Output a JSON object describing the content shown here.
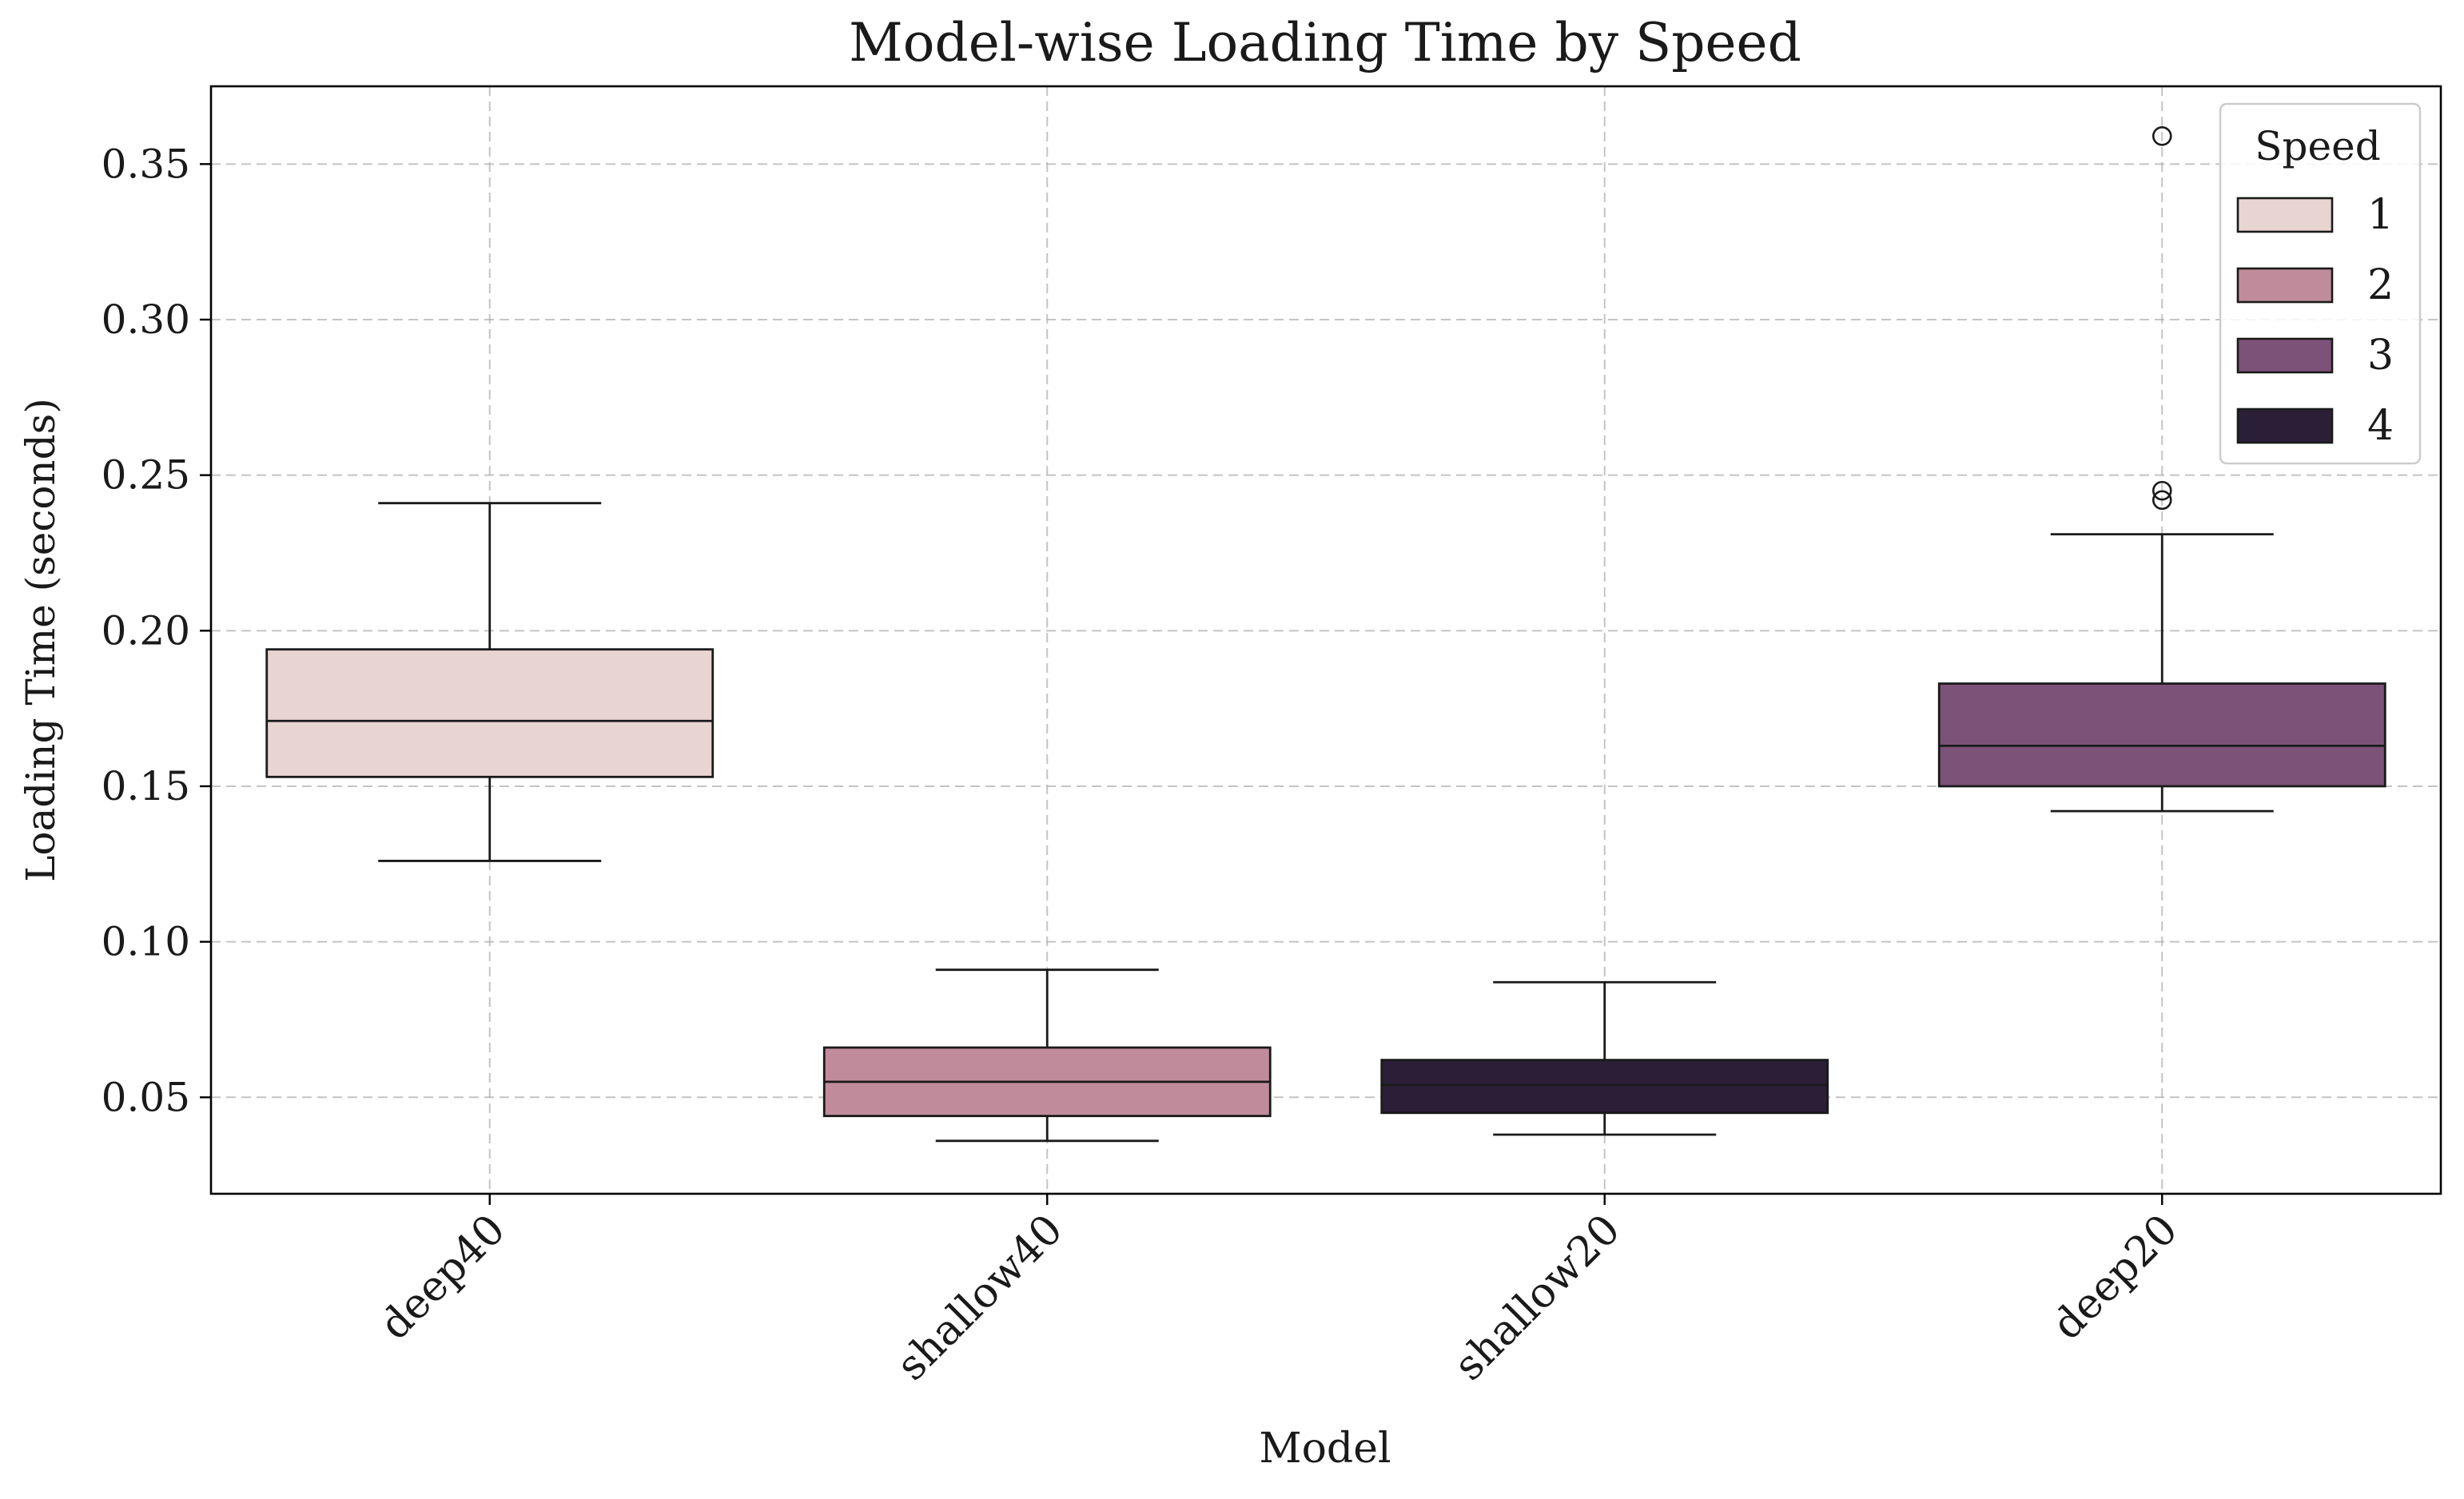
{
  "chart_data": {
    "type": "box",
    "title": "Model-wise Loading Time by Speed",
    "xlabel": "Model",
    "ylabel": "Loading Time (seconds)",
    "categories": [
      "deep40",
      "shallow40",
      "shallow20",
      "deep20"
    ],
    "ylim": [
      0.019,
      0.375
    ],
    "yticks": [
      {
        "value": 0.05,
        "label": "0.05"
      },
      {
        "value": 0.1,
        "label": "0.10"
      },
      {
        "value": 0.15,
        "label": "0.15"
      },
      {
        "value": 0.2,
        "label": "0.20"
      },
      {
        "value": 0.25,
        "label": "0.25"
      },
      {
        "value": 0.3,
        "label": "0.30"
      },
      {
        "value": 0.35,
        "label": "0.35"
      }
    ],
    "grid": true,
    "legend": {
      "title": "Speed",
      "placement": "top-right",
      "entries": [
        {
          "label": "1",
          "color": "#e8d4d0"
        },
        {
          "label": "2",
          "color": "#c08c9b"
        },
        {
          "label": "3",
          "color": "#7c5278"
        },
        {
          "label": "4",
          "color": "#2b1f38"
        }
      ]
    },
    "boxes": [
      {
        "category": "deep40",
        "speed": "1",
        "color": "#e8d4d0",
        "whisker_low": 0.126,
        "q1": 0.153,
        "median": 0.171,
        "q3": 0.194,
        "whisker_high": 0.241,
        "outliers": []
      },
      {
        "category": "shallow40",
        "speed": "2",
        "color": "#c08c9b",
        "whisker_low": 0.036,
        "q1": 0.044,
        "median": 0.055,
        "q3": 0.066,
        "whisker_high": 0.091,
        "outliers": []
      },
      {
        "category": "shallow20",
        "speed": "4",
        "color": "#2b1f38",
        "whisker_low": 0.038,
        "q1": 0.045,
        "median": 0.054,
        "q3": 0.062,
        "whisker_high": 0.087,
        "outliers": []
      },
      {
        "category": "deep20",
        "speed": "3",
        "color": "#7c5278",
        "whisker_low": 0.142,
        "q1": 0.15,
        "median": 0.163,
        "q3": 0.183,
        "whisker_high": 0.231,
        "outliers": [
          0.242,
          0.245,
          0.359
        ]
      }
    ]
  }
}
